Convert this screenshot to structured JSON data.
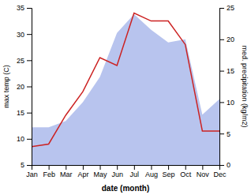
{
  "chart_data": {
    "type": "line",
    "categories": [
      "Jan",
      "Feb",
      "Mar",
      "Apr",
      "May",
      "Jun",
      "Jul",
      "Aug",
      "Sep",
      "Oct",
      "Nov",
      "Dec"
    ],
    "xlabel": "date (month)",
    "ylabel": "max temp (C)",
    "y2label": "med. precipitation (kg/m2)",
    "ylim": [
      5,
      35
    ],
    "yticks": [
      5,
      10,
      15,
      20,
      25,
      30,
      35
    ],
    "y2lim": [
      0,
      25
    ],
    "y2ticks": [
      0,
      5,
      10,
      15,
      20,
      25
    ],
    "series": [
      {
        "type": "area",
        "axis": "y2",
        "color": "#b8c4ee",
        "values": [
          6.0,
          6.0,
          7.0,
          10.0,
          14.0,
          21.0,
          24.0,
          21.5,
          19.5,
          20.0,
          8.0,
          10.5
        ]
      },
      {
        "type": "line",
        "color": "#cc2222",
        "values": [
          8.5,
          9.0,
          14.5,
          19.0,
          25.5,
          24.0,
          34.0,
          32.5,
          32.5,
          28.0,
          11.5,
          11.5
        ]
      }
    ]
  }
}
